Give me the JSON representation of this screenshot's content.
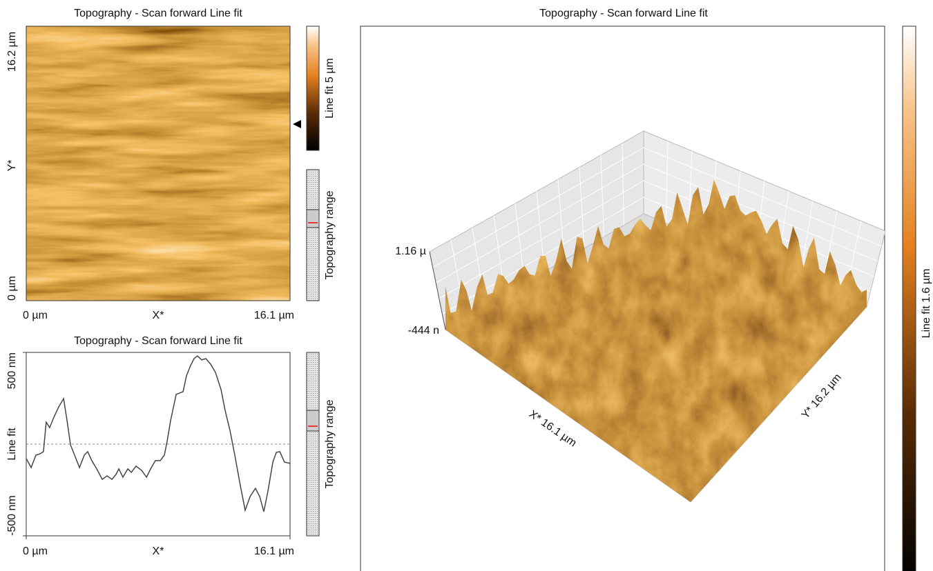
{
  "image_panel": {
    "title": "Topography - Scan forward Line fit",
    "y_ticks": [
      "16.2 µm",
      "0 µm"
    ],
    "y_label": "Y*",
    "x_ticks": [
      "0 µm",
      "16.1 µm"
    ],
    "x_label": "X*",
    "colorbar_label": "Line fit 5 µm",
    "range_label": "Topography range"
  },
  "chart_data": {
    "type": "line",
    "title": "Topography - Scan forward Line fit",
    "ylabel": "Line fit",
    "xlabel": "X*",
    "x": [
      0,
      0.3,
      0.59,
      0.84,
      1.05,
      1.22,
      1.43,
      1.69,
      1.98,
      2.28,
      2.49,
      2.7,
      2.95,
      3.25,
      3.54,
      3.75,
      4.0,
      4.3,
      4.64,
      4.93,
      5.23,
      5.48,
      5.65,
      5.9,
      6.2,
      6.41,
      6.7,
      7.04,
      7.34,
      7.59,
      7.88,
      8.18,
      8.43,
      8.6,
      8.81,
      9.15,
      9.57,
      9.78,
      10.03,
      10.24,
      10.45,
      10.71,
      10.96,
      11.25,
      11.55,
      11.89,
      12.14,
      12.44,
      12.73,
      13.03,
      13.36,
      13.66,
      13.99,
      14.25,
      14.5,
      14.75,
      15.05,
      15.26,
      15.47,
      15.76,
      16.1
    ],
    "series": [
      {
        "color": "#444444",
        "values": [
          -79,
          -128,
          -60,
          -53,
          -41,
          120,
          90,
          147,
          203,
          248,
          128,
          -4,
          -60,
          -128,
          -60,
          -41,
          -90,
          -135,
          -192,
          -173,
          -192,
          -165,
          -135,
          -180,
          -135,
          -154,
          -120,
          -143,
          -180,
          -135,
          -90,
          -90,
          -60,
          15,
          128,
          271,
          286,
          372,
          429,
          466,
          481,
          459,
          466,
          436,
          391,
          297,
          184,
          71,
          -60,
          -210,
          -361,
          -286,
          -241,
          -286,
          -368,
          -256,
          -98,
          -45,
          -41,
          -98,
          -105
        ]
      }
    ],
    "xlim": [
      0,
      16.1
    ],
    "ylim": [
      -500,
      500
    ],
    "xticks": [
      {
        "value": 0,
        "label": "0 µm"
      },
      {
        "value": 16.1,
        "label": "16.1 µm"
      }
    ],
    "yticks": [
      {
        "value": -500,
        "label": "-500 nm"
      },
      {
        "value": 500,
        "label": "500 nm"
      }
    ],
    "range_label": "Topography range"
  },
  "surface_panel": {
    "title": "Topography - Scan forward Line fit",
    "z_ticks": [
      "1.16 µ",
      "-444 n"
    ],
    "x_axis_label": "X* 16.1 µm",
    "y_axis_label": "Y* 16.2 µm",
    "colorbar_label": "Line fit 1.6 µm"
  }
}
